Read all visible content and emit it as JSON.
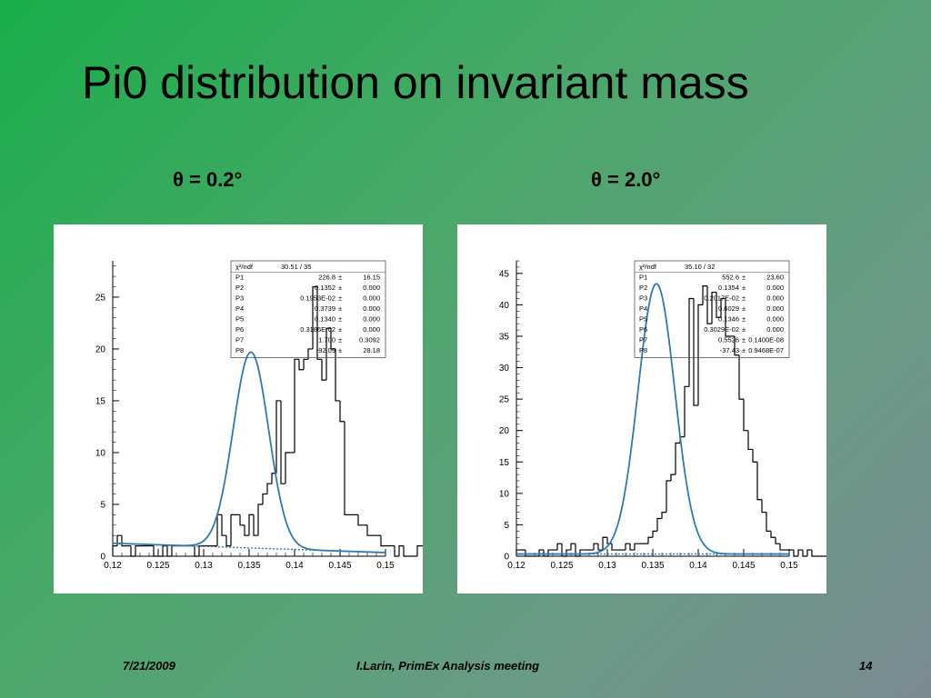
{
  "slide": {
    "title": "Pi0 distribution on invariant mass",
    "footer_date": "7/21/2009",
    "footer_center": "I.Larin,    PrimEx Analysis meeting",
    "page_number": "14"
  },
  "colors": {
    "fit_curve": "#2e7bb0",
    "histogram": "#000000",
    "panel_bg": "#ffffff"
  },
  "chart_data": [
    {
      "type": "histogram",
      "title": "θ = 0.2°",
      "xlabel": "",
      "ylabel": "",
      "xlim": [
        0.12,
        0.15
      ],
      "ylim": [
        0,
        28.5
      ],
      "x_ticks": [
        0.12,
        0.125,
        0.13,
        0.135,
        0.14,
        0.145,
        0.15
      ],
      "x_tick_labels": [
        "0.12",
        "0.125",
        "0.13",
        "0.135",
        "0.14",
        "0.145",
        "0.15"
      ],
      "y_ticks": [
        0,
        5,
        10,
        15,
        20,
        25
      ],
      "y_tick_labels": [
        "0",
        "5",
        "10",
        "15",
        "20",
        "25"
      ],
      "bin_width": 0.0005,
      "bin_start": 0.12,
      "counts": [
        1,
        2,
        1,
        1,
        0,
        1,
        1,
        1,
        1,
        0,
        0,
        1,
        0,
        1,
        1,
        1,
        1,
        1,
        0,
        1,
        1,
        1,
        1,
        4,
        2,
        1,
        4,
        4,
        3,
        2,
        4,
        2,
        5,
        6,
        7,
        8,
        15,
        7,
        10,
        10,
        19,
        18,
        19,
        20,
        26,
        19,
        17,
        22,
        20,
        15,
        13,
        4,
        4,
        4,
        3,
        3,
        2,
        2,
        2,
        1,
        1,
        1,
        0,
        1,
        0,
        0,
        0,
        1,
        1,
        0,
        0,
        1,
        0,
        0,
        0,
        1,
        0,
        0,
        0,
        0
      ],
      "fit": {
        "amp": 18.9,
        "mean": 0.1352,
        "sigma": 0.00195,
        "bg_a": 1.25,
        "bg_slope": -30
      },
      "stats": {
        "header_label": "χ²/ndf",
        "header_value": "30.51   /   35",
        "rows": [
          {
            "name": "P1",
            "value": "226.8",
            "error": "16.15"
          },
          {
            "name": "P2",
            "value": "0.1352",
            "error": "0.000"
          },
          {
            "name": "P3",
            "value": "0.1953E-02",
            "error": "0.000"
          },
          {
            "name": "P4",
            "value": "0.3739",
            "error": "0.000"
          },
          {
            "name": "P5",
            "value": "0.1340",
            "error": "0.000"
          },
          {
            "name": "P6",
            "value": "0.3186E-02",
            "error": "0.000"
          },
          {
            "name": "P7",
            "value": "1.700",
            "error": "0.3092"
          },
          {
            "name": "P8",
            "value": "-92.09",
            "error": "28.18"
          }
        ]
      }
    },
    {
      "type": "histogram",
      "title": "θ = 2.0°",
      "xlabel": "",
      "ylabel": "",
      "xlim": [
        0.12,
        0.15
      ],
      "ylim": [
        0,
        47
      ],
      "x_ticks": [
        0.12,
        0.125,
        0.13,
        0.135,
        0.14,
        0.145,
        0.15
      ],
      "x_tick_labels": [
        "0.12",
        "0.125",
        "0.13",
        "0.135",
        "0.14",
        "0.145",
        "0.15"
      ],
      "y_ticks": [
        0,
        5,
        10,
        15,
        20,
        25,
        30,
        35,
        40,
        45
      ],
      "y_tick_labels": [
        "0",
        "5",
        "10",
        "15",
        "20",
        "25",
        "30",
        "35",
        "40",
        "45"
      ],
      "bin_width": 0.0005,
      "bin_start": 0.12,
      "counts": [
        1,
        1,
        0,
        0,
        0,
        1,
        0,
        1,
        1,
        2,
        0,
        1,
        2,
        0,
        1,
        1,
        1,
        2,
        1,
        3,
        2,
        1,
        1,
        1,
        2,
        1,
        2,
        2,
        2,
        3,
        4,
        6,
        7,
        12,
        13,
        18,
        19,
        27,
        41,
        24,
        40,
        43,
        37,
        42,
        38,
        41,
        35,
        35,
        32,
        25,
        20,
        17,
        15,
        9,
        7,
        4,
        3,
        2,
        1,
        1,
        1,
        0,
        1,
        0,
        1,
        0,
        0,
        0,
        0,
        0,
        0,
        0,
        0,
        0,
        0,
        0,
        0,
        0,
        0,
        0
      ],
      "fit": {
        "amp": 43.0,
        "mean": 0.1354,
        "sigma": 0.00202,
        "bg_a": 0.35,
        "bg_slope": 0
      },
      "stats": {
        "header_label": "χ²/ndf",
        "header_value": "35.10   /   32",
        "rows": [
          {
            "name": "P1",
            "value": "552.6",
            "error": "23.60"
          },
          {
            "name": "P2",
            "value": "0.1354",
            "error": "0.000"
          },
          {
            "name": "P3",
            "value": "0.2017E-02",
            "error": "0.000"
          },
          {
            "name": "P4",
            "value": "0.6029",
            "error": "0.000"
          },
          {
            "name": "P5",
            "value": "0.1346",
            "error": "0.000"
          },
          {
            "name": "P6",
            "value": "0.3029E-02",
            "error": "0.000"
          },
          {
            "name": "P7",
            "value": "0.5526",
            "error": "0.1400E-08"
          },
          {
            "name": "P8",
            "value": "-37.43",
            "error": "0.9468E-07"
          }
        ]
      }
    }
  ]
}
